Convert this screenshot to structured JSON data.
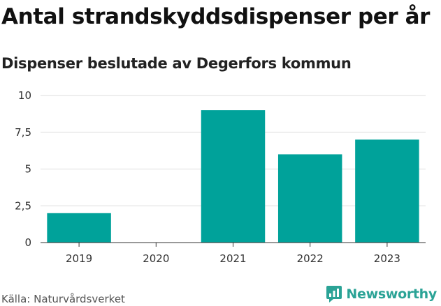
{
  "chart_data": {
    "type": "bar",
    "title": "Antal strandskyddsdispenser per år",
    "subtitle": "Dispenser beslutade av Degerfors kommun",
    "categories": [
      "2019",
      "2020",
      "2021",
      "2022",
      "2023"
    ],
    "values": [
      2,
      0,
      9,
      6,
      7
    ],
    "ylim": [
      0,
      10
    ],
    "yticks": [
      0,
      2.5,
      5,
      7.5,
      10
    ],
    "ytick_labels": [
      "0",
      "2,5",
      "5",
      "7,5",
      "10"
    ],
    "xlabel": "",
    "ylabel": "",
    "grid": true,
    "bar_color": "#00a29a"
  },
  "footer": {
    "source": "Källa: Naturvårdsverket",
    "brand": "Newsworthy",
    "brand_color": "#2ba396",
    "brand_icon": "newsworthy-logo-icon"
  }
}
